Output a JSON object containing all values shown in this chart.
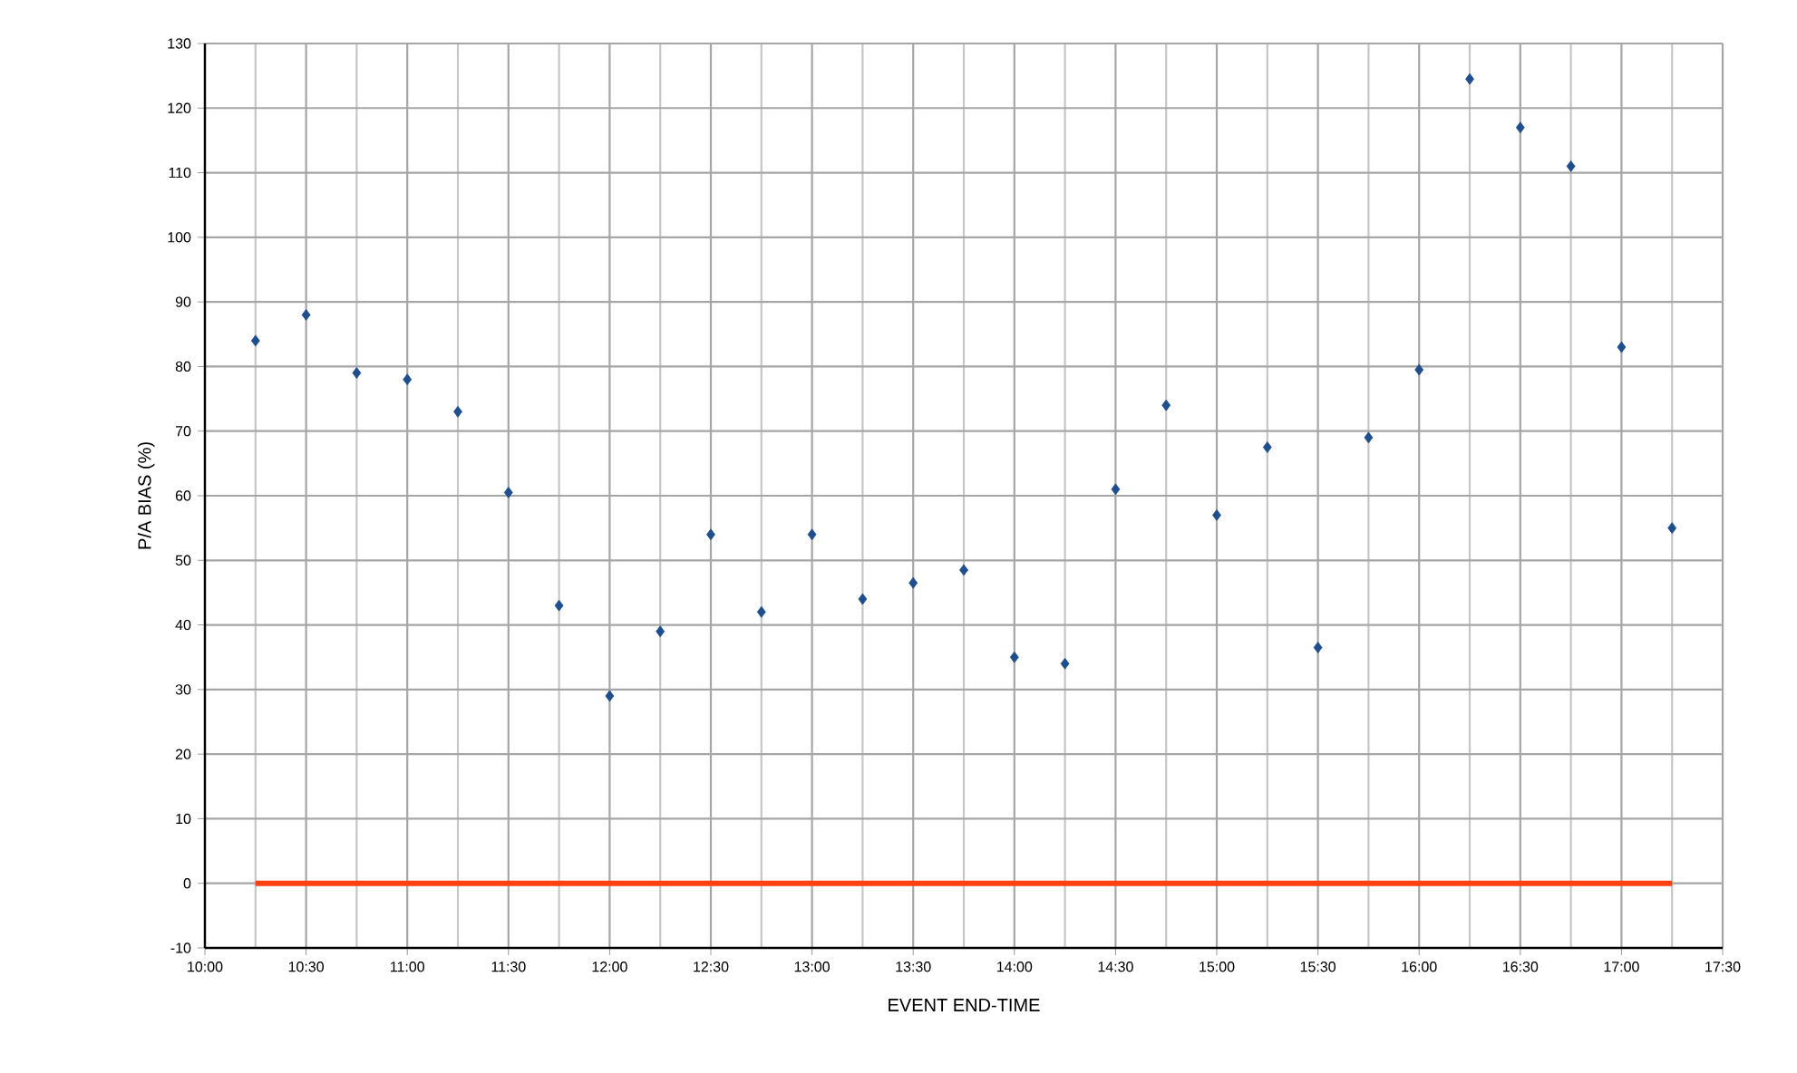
{
  "chart_data": {
    "type": "scatter",
    "xlabel": "EVENT END-TIME",
    "ylabel": "P/A BIAS (%)",
    "xlim": [
      10,
      17.5
    ],
    "xticks": [
      {
        "value": 10,
        "label": "10:00"
      },
      {
        "value": 10.5,
        "label": "10:30"
      },
      {
        "value": 11,
        "label": "11:00"
      },
      {
        "value": 11.5,
        "label": "11:30"
      },
      {
        "value": 12,
        "label": "12:00"
      },
      {
        "value": 12.5,
        "label": "12:30"
      },
      {
        "value": 13,
        "label": "13:00"
      },
      {
        "value": 13.5,
        "label": "13:30"
      },
      {
        "value": 14,
        "label": "14:00"
      },
      {
        "value": 14.5,
        "label": "14:30"
      },
      {
        "value": 15,
        "label": "15:00"
      },
      {
        "value": 15.5,
        "label": "15:30"
      },
      {
        "value": 16,
        "label": "16:00"
      },
      {
        "value": 16.5,
        "label": "16:30"
      },
      {
        "value": 17,
        "label": "17:00"
      },
      {
        "value": 17.5,
        "label": "17:30"
      }
    ],
    "ylim": [
      -10,
      130
    ],
    "yticks": [
      -10,
      0,
      10,
      20,
      30,
      40,
      50,
      60,
      70,
      80,
      90,
      100,
      110,
      120,
      130
    ],
    "grid": true,
    "series": [
      {
        "marker": "diamond",
        "color": "#1f4e8c",
        "x": [
          10.25,
          10.5,
          10.75,
          11,
          11.25,
          11.5,
          11.75,
          12,
          12.25,
          12.5,
          12.75,
          13,
          13.25,
          13.5,
          13.75,
          14,
          14.25,
          14.5,
          14.75,
          15,
          15.25,
          15.5,
          15.75,
          16,
          16.25,
          16.5,
          16.75,
          17,
          17.25
        ],
        "values": [
          84,
          88,
          79,
          78,
          73,
          60.5,
          43,
          29,
          39,
          54,
          42,
          54,
          44,
          46.5,
          48.5,
          35,
          34,
          61,
          74,
          57,
          67.5,
          36.5,
          69,
          79.5,
          124.5,
          117,
          111,
          83,
          55
        ]
      },
      {
        "type": "line",
        "marker": "none",
        "color": "#ff4010",
        "x": [
          10.25,
          17.25
        ],
        "values": [
          0,
          0
        ]
      }
    ]
  }
}
